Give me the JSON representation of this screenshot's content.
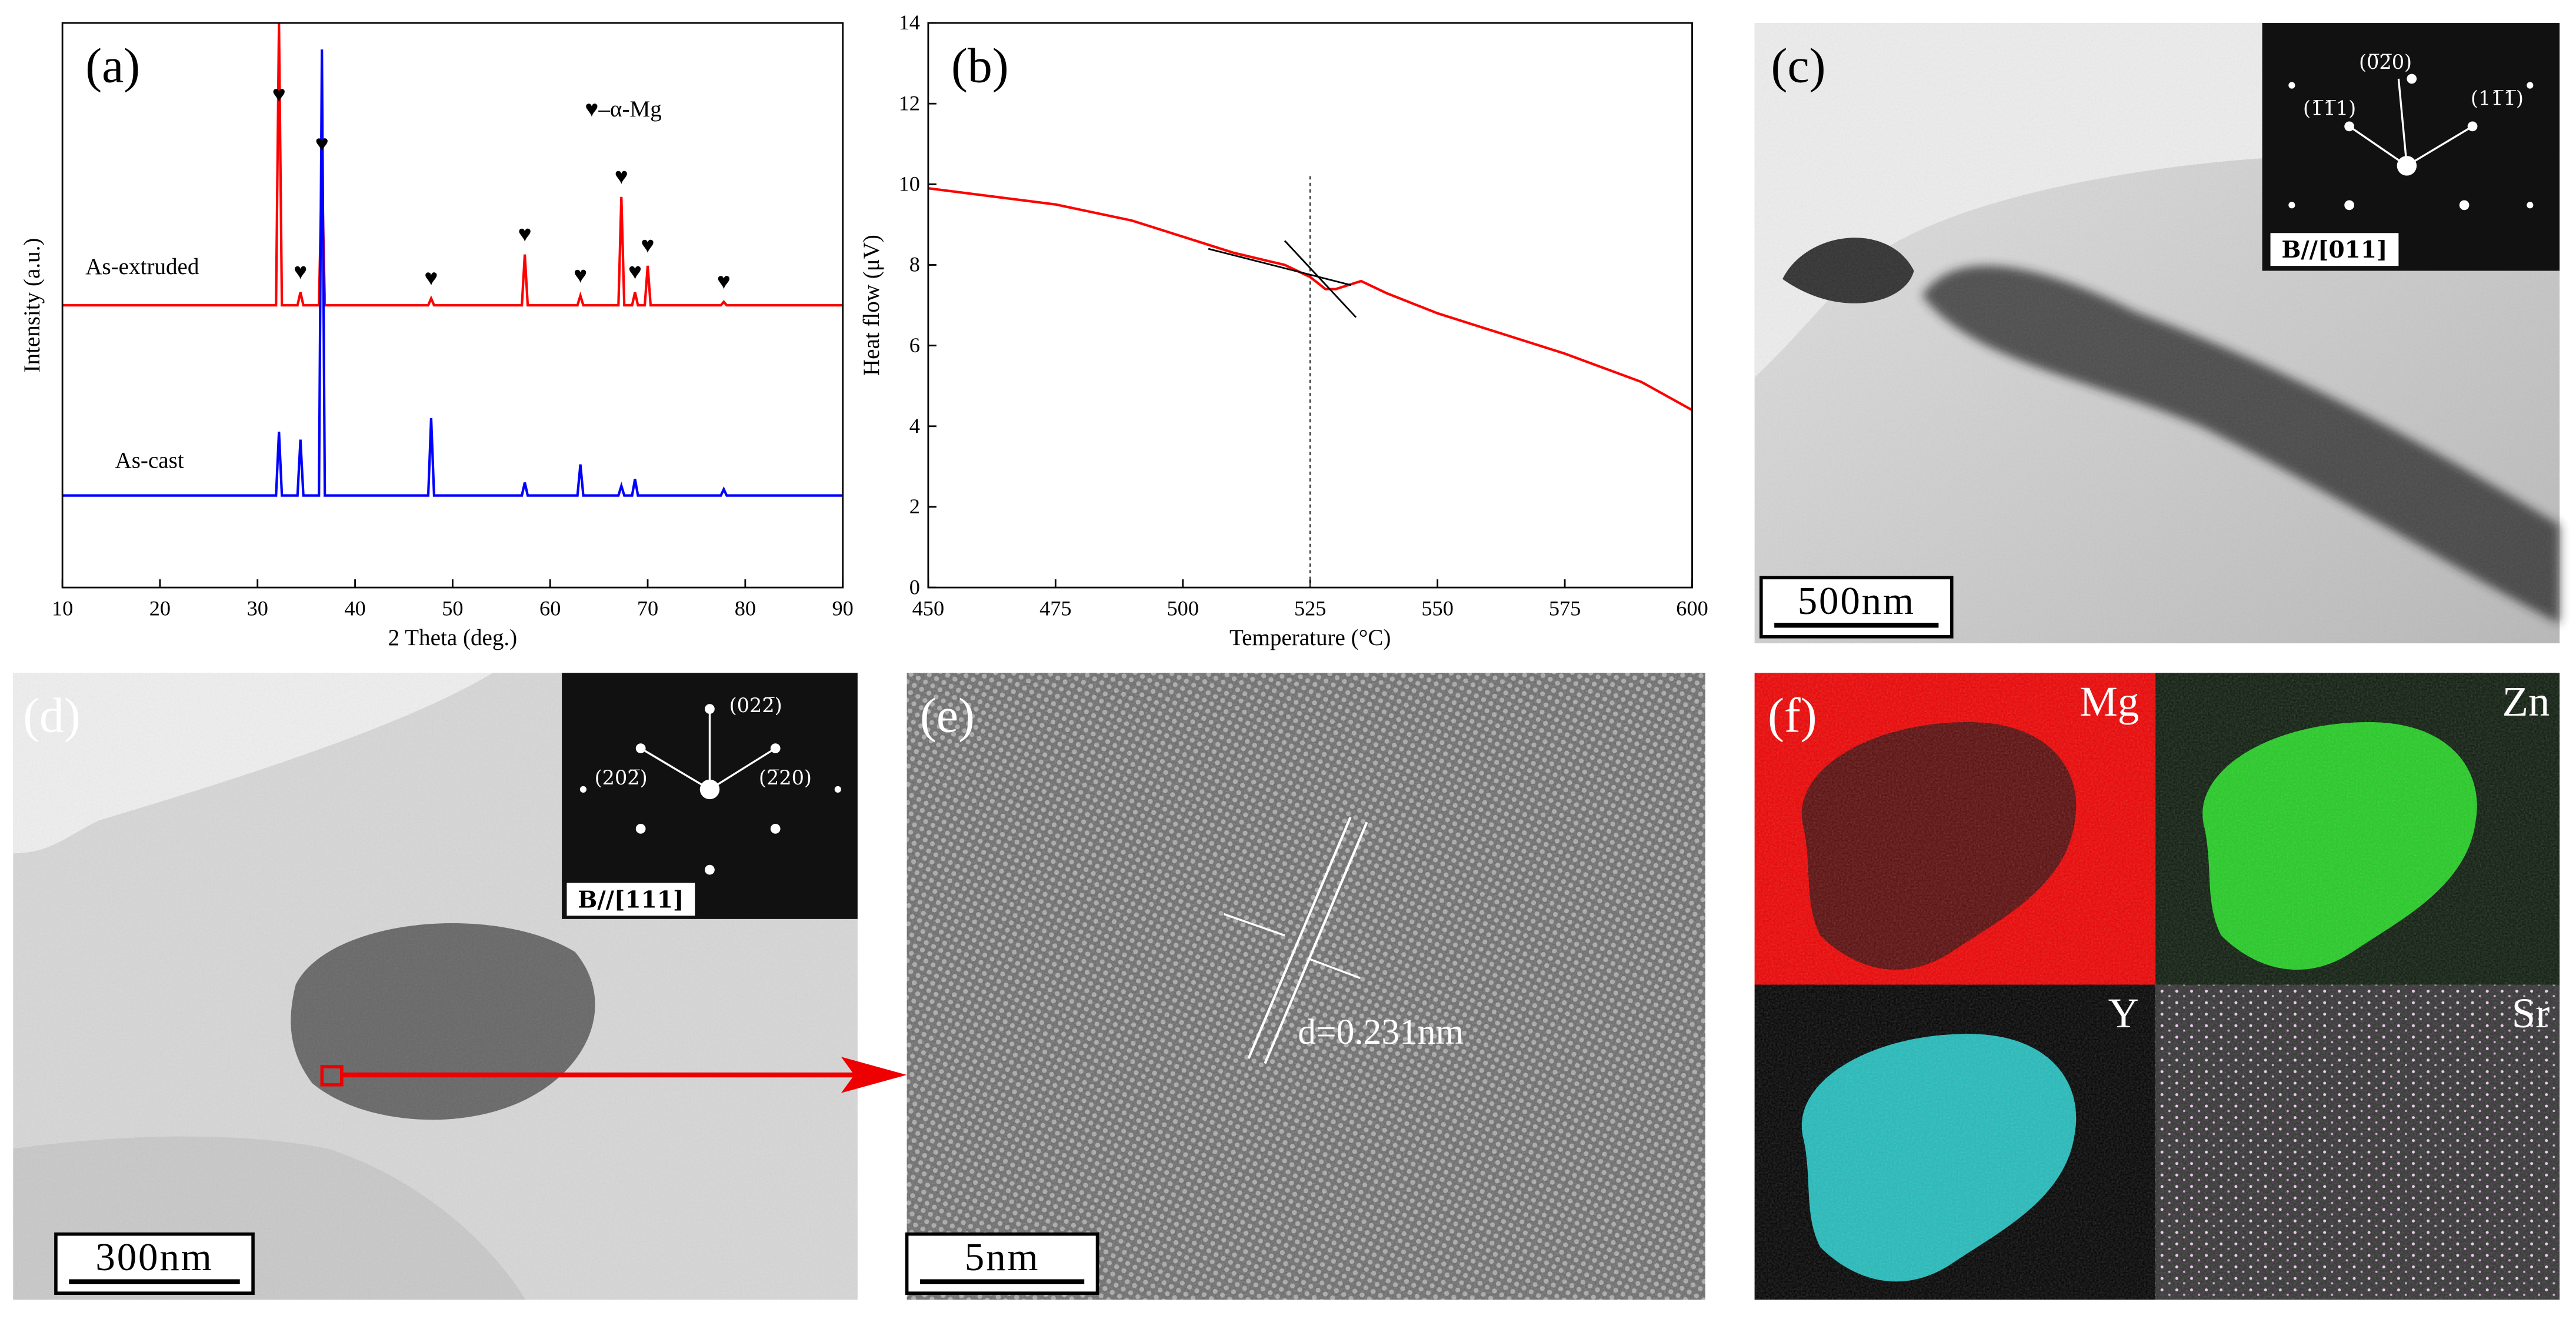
{
  "chart_data": [
    {
      "type": "line",
      "panel_label": "(a)",
      "xlabel": "2 Theta (deg.)",
      "ylabel": "Intensity (a.u.)",
      "xlim": [
        10,
        90
      ],
      "xticks": [
        10,
        20,
        30,
        40,
        50,
        60,
        70,
        80,
        90
      ],
      "ylim": [
        0,
        100
      ],
      "legend_note": "♥–α-Mg",
      "peak_marker": "♥",
      "marked_peaks": [
        32.2,
        34.4,
        36.6,
        47.8,
        57.4,
        63.1,
        67.3,
        68.7,
        70.0,
        77.8
      ],
      "x": [
        10,
        31.9,
        32.2,
        32.5,
        34.1,
        34.4,
        34.7,
        36.3,
        36.6,
        36.9,
        47.5,
        47.8,
        48.1,
        57.1,
        57.4,
        57.7,
        62.8,
        63.1,
        63.4,
        67.0,
        67.3,
        67.6,
        68.4,
        68.7,
        69.0,
        69.7,
        70.0,
        70.3,
        77.5,
        77.8,
        78.1,
        90
      ],
      "series": [
        {
          "name": "As-extruded",
          "color": "#ff0000",
          "values": [
            50,
            50,
            100,
            50,
            50,
            52.3,
            50,
            50,
            75,
            50,
            50,
            51.2,
            50,
            50,
            59,
            50,
            50,
            51.7,
            50,
            50,
            69.2,
            50,
            50,
            52.3,
            50,
            50,
            57,
            50,
            50,
            50.6,
            50,
            50
          ]
        },
        {
          "name": "As-cast",
          "color": "#0000ff",
          "values": [
            16.3,
            16.3,
            27.6,
            16.3,
            16.3,
            26.2,
            16.3,
            16.3,
            95.3,
            16.3,
            16.3,
            30,
            16.3,
            16.3,
            18.6,
            16.3,
            16.3,
            21.8,
            16.3,
            16.3,
            18,
            16.3,
            16.3,
            19.2,
            16.3,
            16.3,
            16.3,
            16.3,
            16.3,
            17.4,
            16.3,
            16.3
          ]
        }
      ]
    },
    {
      "type": "line",
      "panel_label": "(b)",
      "xlabel": "Temperature (°C)",
      "ylabel": "Heat flow (μV)",
      "xlim": [
        450,
        600
      ],
      "xticks": [
        450,
        475,
        500,
        525,
        550,
        575,
        600
      ],
      "ylim": [
        0,
        14
      ],
      "yticks": [
        0,
        2,
        4,
        6,
        8,
        10,
        12,
        14
      ],
      "x": [
        450,
        475,
        490,
        500,
        510,
        520,
        525,
        528,
        530,
        535,
        540,
        550,
        560,
        575,
        590,
        600
      ],
      "series": [
        {
          "name": "Heat flow",
          "color": "#ff0000",
          "values": [
            9.9,
            9.5,
            9.1,
            8.7,
            8.3,
            8.0,
            7.7,
            7.4,
            7.4,
            7.6,
            7.3,
            6.8,
            6.4,
            5.8,
            5.1,
            4.4
          ]
        }
      ],
      "marker_x": 525,
      "tangent_lines": [
        {
          "x": [
            505,
            533
          ],
          "y": [
            8.4,
            7.5
          ]
        },
        {
          "x": [
            520,
            534
          ],
          "y": [
            8.6,
            6.7
          ]
        }
      ]
    }
  ],
  "images": {
    "c": {
      "panel_label": "(c)",
      "scale_bar": "500nm",
      "spots": [
        "(0̅2̅0)",
        "(1̅1̅1)",
        "(11̅1̅)"
      ],
      "zone_axis": "B//[011]"
    },
    "d": {
      "panel_label": "(d)",
      "scale_bar": "300nm",
      "spots": [
        "(022̅)",
        "(202̅)",
        "(2̅20)"
      ],
      "zone_axis": "B//[111]"
    },
    "e": {
      "panel_label": "(e)",
      "scale_bar": "5nm",
      "spacing": "d=0.231nm"
    },
    "f": {
      "panel_label": "(f)",
      "elements": [
        "Mg",
        "Zn",
        "Y",
        "Sr"
      ]
    }
  }
}
